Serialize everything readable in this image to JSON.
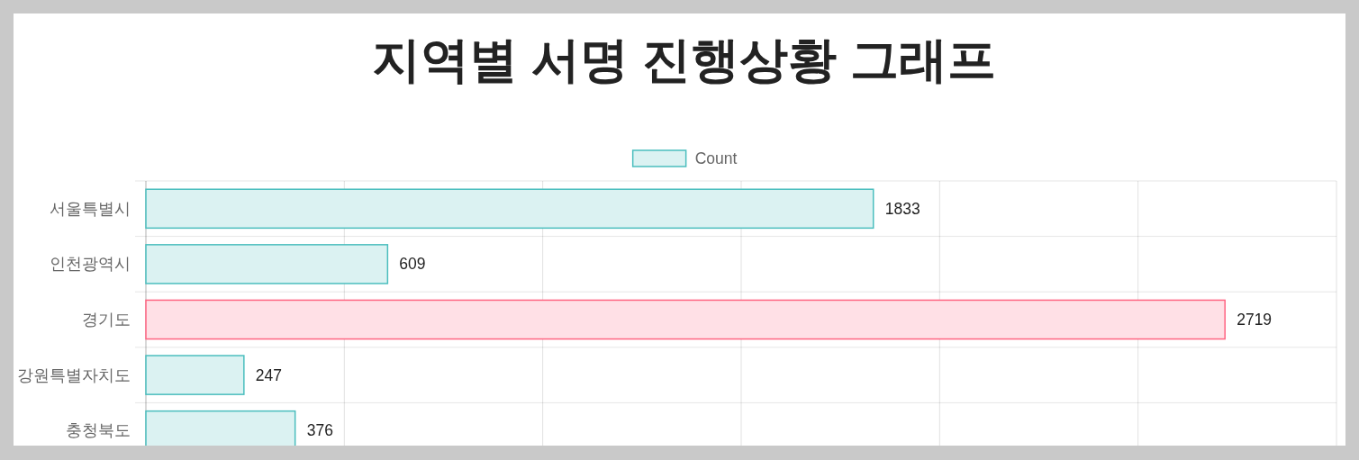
{
  "chart_data": {
    "type": "bar",
    "orientation": "horizontal",
    "title": "지역별 서명 진행상황 그래프",
    "categories": [
      "서울특별시",
      "인천광역시",
      "경기도",
      "강원특별자치도",
      "충청북도"
    ],
    "series": [
      {
        "name": "Count",
        "colors": [
          "#dbf2f2",
          "#dbf2f2",
          "#ffe0e6",
          "#dbf2f2",
          "#dbf2f2"
        ],
        "values": [
          1833,
          609,
          2719,
          247,
          376
        ]
      }
    ],
    "xlim": [
      0,
      3000
    ],
    "xticks": [
      {
        "value": 0,
        "label": null
      },
      {
        "value": 500,
        "label": null
      },
      {
        "value": 1000,
        "label": null
      },
      {
        "value": 1500,
        "label": null
      },
      {
        "value": 2000,
        "label": null
      },
      {
        "value": 2500,
        "label": null
      },
      {
        "value": 3000,
        "label": null
      }
    ],
    "tick_labels": "y",
    "grid": true,
    "legend": "top",
    "data_labels": true
  }
}
